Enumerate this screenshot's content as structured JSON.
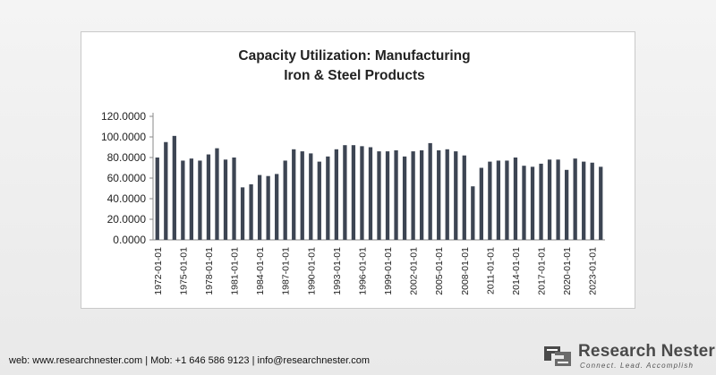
{
  "chart_data": {
    "type": "bar",
    "title": [
      "Capacity Utilization: Manufacturing",
      "Iron & Steel Products"
    ],
    "xlabel": "",
    "ylabel": "",
    "ylim": [
      0,
      120
    ],
    "yticks": [
      "0.0000",
      "20.0000",
      "40.0000",
      "60.0000",
      "80.0000",
      "100.0000",
      "120.0000"
    ],
    "grid": false,
    "bar_color": "#3d4553",
    "categories": [
      "1972-01-01",
      "1973-01-01",
      "1974-01-01",
      "1975-01-01",
      "1976-01-01",
      "1977-01-01",
      "1978-01-01",
      "1979-01-01",
      "1980-01-01",
      "1981-01-01",
      "1982-01-01",
      "1983-01-01",
      "1984-01-01",
      "1985-01-01",
      "1986-01-01",
      "1987-01-01",
      "1988-01-01",
      "1989-01-01",
      "1990-01-01",
      "1991-01-01",
      "1992-01-01",
      "1993-01-01",
      "1994-01-01",
      "1995-01-01",
      "1996-01-01",
      "1997-01-01",
      "1998-01-01",
      "1999-01-01",
      "2000-01-01",
      "2001-01-01",
      "2002-01-01",
      "2003-01-01",
      "2004-01-01",
      "2005-01-01",
      "2006-01-01",
      "2007-01-01",
      "2008-01-01",
      "2009-01-01",
      "2010-01-01",
      "2011-01-01",
      "2012-01-01",
      "2013-01-01",
      "2014-01-01",
      "2015-01-01",
      "2016-01-01",
      "2017-01-01",
      "2018-01-01",
      "2019-01-01",
      "2020-01-01",
      "2021-01-01",
      "2022-01-01",
      "2023-01-01",
      "2024-01-01"
    ],
    "shown_tick_labels": [
      "1972-01-01",
      "1975-01-01",
      "1978-01-01",
      "1981-01-01",
      "1984-01-01",
      "1987-01-01",
      "1990-01-01",
      "1993-01-01",
      "1996-01-01",
      "1999-01-01",
      "2002-01-01",
      "2005-01-01",
      "2008-01-01",
      "2011-01-01",
      "2014-01-01",
      "2017-01-01",
      "2020-01-01",
      "2023-01-01"
    ],
    "values": [
      80,
      95,
      101,
      77,
      79,
      77,
      83,
      89,
      78,
      80,
      51,
      54,
      63,
      62,
      64,
      77,
      88,
      86,
      84,
      76,
      81,
      88,
      92,
      92,
      91,
      90,
      86,
      86,
      87,
      81,
      86,
      87,
      94,
      87,
      88,
      86,
      82,
      52,
      70,
      76,
      77,
      77,
      80,
      72,
      71,
      74,
      78,
      78,
      68,
      79,
      76,
      75,
      71
    ]
  },
  "footer": {
    "contact": "web: www.researchnester.com | Mob: +1 646 586 9123 | info@researchnester.com"
  },
  "brand": {
    "name": "Research Nester",
    "tagline": "Connect. Lead. Accomplish"
  }
}
